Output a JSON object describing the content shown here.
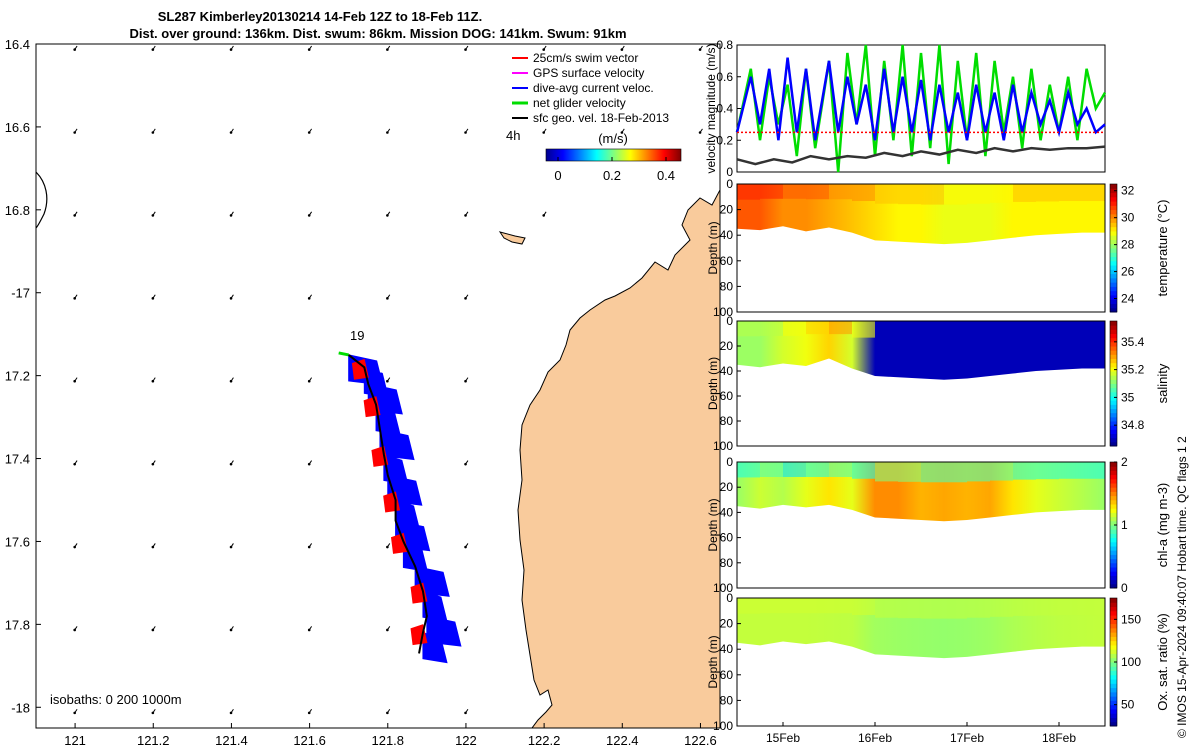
{
  "title": {
    "line1": "SL287 Kimberley20130214 14-Feb 12Z to 18-Feb 11Z.",
    "line2": "Dist. over ground: 136km. Dist. swum: 86km. Mission DOG: 141km. Swum: 91km"
  },
  "colors": {
    "land": "#f9cb9c",
    "swim": "#ff0000",
    "gps": "#ff00ff",
    "current": "#0000ff",
    "net": "#00dd00",
    "geo": "#000000"
  },
  "chart_data": [
    {
      "type": "map",
      "xlim": [
        120.9,
        122.65
      ],
      "ylim": [
        -18.05,
        -16.4
      ],
      "xticks": [
        121,
        121.2,
        121.4,
        121.6,
        121.8,
        122,
        122.2,
        122.4,
        122.6
      ],
      "xtick_labels": [
        "121",
        "121.2",
        "121.4",
        "121.6",
        "121.8",
        "122",
        "122.2",
        "122.4",
        "122.6"
      ],
      "yticks": [
        -16.4,
        -16.6,
        -16.8,
        -17,
        -17.2,
        -17.4,
        -17.6,
        -17.8,
        -18
      ],
      "ytick_labels": [
        "16.4",
        "16.6",
        "16.8",
        "-17",
        "17.2",
        "17.4",
        "17.6",
        "17.8",
        "-18"
      ],
      "legend": [
        {
          "label": "25cm/s swim vector",
          "color": "#ff0000"
        },
        {
          "label": "GPS surface velocity",
          "color": "#ff00ff"
        },
        {
          "label": "dive-avg current veloc.",
          "color": "#0000ff"
        },
        {
          "label": "net glider velocity",
          "color": "#00dd00"
        },
        {
          "label": "sfc geo. vel. 18-Feb-2013",
          "color": "#000000"
        }
      ],
      "legend_position": "top-right",
      "time_label": "4h",
      "start_label": "19",
      "colorbar": {
        "title": "(m/s)",
        "ticks": [
          0,
          0.2,
          0.4
        ],
        "tick_labels": [
          "0",
          "0.2",
          "0.4"
        ],
        "range": [
          0,
          0.5
        ]
      },
      "isobaths_label": "isobaths: 0   200  1000m",
      "track": [
        [
          121.7,
          -17.15
        ],
        [
          121.74,
          -17.18
        ],
        [
          121.75,
          -17.22
        ],
        [
          121.77,
          -17.27
        ],
        [
          121.78,
          -17.33
        ],
        [
          121.79,
          -17.39
        ],
        [
          121.8,
          -17.44
        ],
        [
          121.82,
          -17.5
        ],
        [
          121.82,
          -17.55
        ],
        [
          121.84,
          -17.6
        ],
        [
          121.87,
          -17.66
        ],
        [
          121.89,
          -17.72
        ],
        [
          121.9,
          -17.78
        ],
        [
          121.89,
          -17.82
        ],
        [
          121.88,
          -17.87
        ]
      ],
      "geo_vectors": {
        "u": -0.04,
        "v": -0.06,
        "lon_start": 121.0,
        "lon_step": 0.2,
        "lat_start": -16.4,
        "lat_step": -0.2
      }
    },
    {
      "type": "line",
      "ylabel": "velocity magnitude (m/s)",
      "ylim": [
        0,
        0.8
      ],
      "yticks": [
        0,
        0.2,
        0.4,
        0.6,
        0.8
      ],
      "ytick_labels": [
        "0",
        "0.2",
        "0.4",
        "0.6",
        "0.8"
      ],
      "xlim": [
        14.5,
        18.5
      ],
      "series": [
        {
          "name": "net glider velocity",
          "color": "#00dd00",
          "x": [
            14.5,
            14.65,
            14.75,
            14.85,
            14.95,
            15.05,
            15.15,
            15.25,
            15.35,
            15.5,
            15.6,
            15.7,
            15.8,
            15.9,
            16.0,
            16.1,
            16.2,
            16.3,
            16.4,
            16.5,
            16.6,
            16.7,
            16.8,
            16.9,
            17.0,
            17.1,
            17.2,
            17.3,
            17.4,
            17.5,
            17.6,
            17.7,
            17.8,
            17.9,
            18.0,
            18.1,
            18.2,
            18.3,
            18.4,
            18.5
          ],
          "values": [
            0.25,
            0.65,
            0.2,
            0.6,
            0.3,
            0.55,
            0.1,
            0.65,
            0.15,
            0.7,
            0.0,
            0.75,
            0.3,
            0.8,
            0.1,
            0.7,
            0.2,
            0.8,
            0.1,
            0.75,
            0.15,
            0.8,
            0.05,
            0.7,
            0.2,
            0.75,
            0.1,
            0.7,
            0.25,
            0.6,
            0.15,
            0.65,
            0.2,
            0.55,
            0.25,
            0.6,
            0.2,
            0.65,
            0.4,
            0.5
          ]
        },
        {
          "name": "dive-avg current veloc.",
          "color": "#0000ff",
          "x": [
            14.5,
            14.65,
            14.75,
            14.85,
            14.95,
            15.05,
            15.15,
            15.25,
            15.35,
            15.5,
            15.6,
            15.7,
            15.8,
            15.9,
            16.0,
            16.1,
            16.2,
            16.3,
            16.4,
            16.5,
            16.6,
            16.7,
            16.8,
            16.9,
            17.0,
            17.1,
            17.2,
            17.3,
            17.4,
            17.5,
            17.6,
            17.7,
            17.8,
            17.9,
            18.0,
            18.1,
            18.2,
            18.3,
            18.4,
            18.5
          ],
          "values": [
            0.25,
            0.6,
            0.3,
            0.65,
            0.2,
            0.72,
            0.25,
            0.65,
            0.2,
            0.7,
            0.25,
            0.6,
            0.3,
            0.55,
            0.2,
            0.65,
            0.25,
            0.6,
            0.25,
            0.58,
            0.2,
            0.55,
            0.25,
            0.5,
            0.2,
            0.55,
            0.25,
            0.5,
            0.2,
            0.55,
            0.25,
            0.5,
            0.3,
            0.45,
            0.25,
            0.5,
            0.3,
            0.4,
            0.25,
            0.3
          ]
        },
        {
          "name": "25cm/s swim vector",
          "color": "#ff0000",
          "x": [
            14.5,
            18.5
          ],
          "values": [
            0.25,
            0.25
          ]
        },
        {
          "name": "sfc geo. vel.",
          "color": "#333333",
          "x": [
            14.5,
            14.7,
            14.9,
            15.1,
            15.3,
            15.5,
            15.7,
            15.9,
            16.1,
            16.3,
            16.5,
            16.7,
            16.9,
            17.1,
            17.3,
            17.5,
            17.7,
            17.9,
            18.1,
            18.3,
            18.5
          ],
          "values": [
            0.08,
            0.05,
            0.08,
            0.06,
            0.1,
            0.08,
            0.1,
            0.09,
            0.12,
            0.1,
            0.13,
            0.11,
            0.14,
            0.12,
            0.15,
            0.13,
            0.15,
            0.14,
            0.15,
            0.15,
            0.16
          ]
        }
      ]
    },
    {
      "type": "heatmap",
      "variable": "temperature",
      "ylabel": "Depth (m)",
      "clabel": "temperature (°C)",
      "yticks": [
        0,
        20,
        40,
        60,
        80,
        100
      ],
      "ytick_labels": [
        "0",
        "20",
        "40",
        "60",
        "80",
        "100"
      ],
      "ylim": [
        0,
        100
      ],
      "crange": [
        23,
        32.5
      ],
      "cticks": [
        24,
        26,
        28,
        30,
        32
      ],
      "ctick_labels": [
        "24",
        "26",
        "28",
        "30",
        "32"
      ],
      "x": [
        14.5,
        14.75,
        15.0,
        15.25,
        15.5,
        15.75,
        16.0,
        16.25,
        16.5,
        16.75,
        17.0,
        17.25,
        17.5,
        17.75,
        18.0,
        18.25,
        18.5
      ],
      "bottom_depth": [
        35,
        36,
        33,
        37,
        34,
        38,
        44,
        45,
        46,
        47,
        46,
        44,
        42,
        40,
        39,
        38,
        38
      ],
      "surface_values": [
        31,
        31,
        30.5,
        30.5,
        30,
        30,
        29.5,
        29.5,
        29.5,
        29,
        29,
        29,
        29.5,
        29.5,
        29.5,
        29.5,
        29.5
      ],
      "deep_values": [
        30,
        30,
        29.5,
        29.5,
        29.5,
        29,
        29,
        28.5,
        28.5,
        28.5,
        28.5,
        28.5,
        28.5,
        28.5,
        28.5,
        28.5,
        28.5
      ]
    },
    {
      "type": "heatmap",
      "variable": "salinity",
      "ylabel": "Depth (m)",
      "clabel": "salinity",
      "yticks": [
        0,
        20,
        40,
        60,
        80,
        100
      ],
      "ytick_labels": [
        "0",
        "20",
        "40",
        "60",
        "80",
        "100"
      ],
      "ylim": [
        0,
        100
      ],
      "crange": [
        34.65,
        35.55
      ],
      "cticks": [
        34.8,
        35,
        35.2,
        35.4
      ],
      "ctick_labels": [
        "34.8",
        "35",
        "35.2",
        "35.4"
      ],
      "x": [
        14.5,
        14.75,
        15.0,
        15.25,
        15.5,
        15.75,
        16.0,
        16.25,
        16.5,
        16.75,
        17.0,
        17.25,
        17.5,
        17.75,
        18.0,
        18.25,
        18.5
      ],
      "bottom_depth": [
        35,
        37,
        34,
        36,
        30,
        38,
        44,
        45,
        46,
        47,
        46,
        44,
        42,
        40,
        39,
        38,
        38
      ],
      "surface_values": [
        35.15,
        35.15,
        35.2,
        35.25,
        35.3,
        35.2,
        34.7,
        34.7,
        34.7,
        34.7,
        34.7,
        34.7,
        34.7,
        34.7,
        34.7,
        34.7,
        34.7
      ],
      "deep_values": [
        35.1,
        35.1,
        35.15,
        35.15,
        35.2,
        35.15,
        34.7,
        34.7,
        34.7,
        34.7,
        34.7,
        34.7,
        34.7,
        34.7,
        34.7,
        34.7,
        34.7
      ]
    },
    {
      "type": "heatmap",
      "variable": "chl-a",
      "ylabel": "Depth (m)",
      "clabel": "chl-a (mg m-3)",
      "yticks": [
        0,
        20,
        40,
        60,
        80,
        100
      ],
      "ytick_labels": [
        "0",
        "20",
        "40",
        "60",
        "80",
        "100"
      ],
      "ylim": [
        0,
        100
      ],
      "crange": [
        0,
        2
      ],
      "cticks": [
        0,
        1,
        2
      ],
      "ctick_labels": [
        "0",
        "1",
        "2"
      ],
      "x": [
        14.5,
        14.75,
        15.0,
        15.25,
        15.5,
        15.75,
        16.0,
        16.25,
        16.5,
        16.75,
        17.0,
        17.25,
        17.5,
        17.75,
        18.0,
        18.25,
        18.5
      ],
      "bottom_depth": [
        35,
        37,
        34,
        36,
        34,
        38,
        44,
        45,
        46,
        47,
        46,
        44,
        42,
        40,
        39,
        38,
        38
      ],
      "surface_values": [
        0.8,
        0.9,
        0.7,
        0.8,
        0.9,
        0.8,
        1.0,
        1.0,
        0.9,
        0.9,
        0.9,
        0.9,
        0.8,
        0.8,
        0.8,
        0.8,
        0.8
      ],
      "deep_values": [
        1.3,
        1.4,
        1.5,
        1.6,
        1.7,
        1.6,
        1.95,
        1.95,
        1.9,
        1.95,
        1.9,
        1.95,
        1.8,
        1.6,
        1.5,
        1.4,
        1.3
      ]
    },
    {
      "type": "heatmap",
      "variable": "oxygen",
      "ylabel": "Depth (m)",
      "clabel": "Ox. sat. ratio (%)",
      "yticks": [
        0,
        20,
        40,
        60,
        80,
        100
      ],
      "ytick_labels": [
        "0",
        "20",
        "40",
        "60",
        "80",
        "100"
      ],
      "ylim": [
        0,
        100
      ],
      "crange": [
        25,
        175
      ],
      "cticks": [
        50,
        100,
        150
      ],
      "ctick_labels": [
        "50",
        "100",
        "150"
      ],
      "x": [
        14.5,
        14.75,
        15.0,
        15.25,
        15.5,
        15.75,
        16.0,
        16.25,
        16.5,
        16.75,
        17.0,
        17.25,
        17.5,
        17.75,
        18.0,
        18.25,
        18.5
      ],
      "x_tick_values": [
        15,
        16,
        17,
        18
      ],
      "xtick_labels": [
        "15Feb",
        "16Feb",
        "17Feb",
        "18Feb"
      ],
      "bottom_depth": [
        35,
        37,
        34,
        36,
        34,
        38,
        44,
        45,
        46,
        47,
        46,
        44,
        42,
        40,
        39,
        38,
        38
      ],
      "surface_values": [
        112,
        112,
        112,
        112,
        112,
        112,
        110,
        110,
        110,
        110,
        110,
        110,
        110,
        110,
        110,
        110,
        110
      ],
      "deep_values": [
        108,
        108,
        108,
        108,
        107,
        106,
        100,
        98,
        97,
        96,
        97,
        99,
        103,
        106,
        108,
        109,
        110
      ]
    }
  ],
  "footer": "© IMOS 15-Apr-2024 09:40:07 Hobart time. QC flags 1  2"
}
